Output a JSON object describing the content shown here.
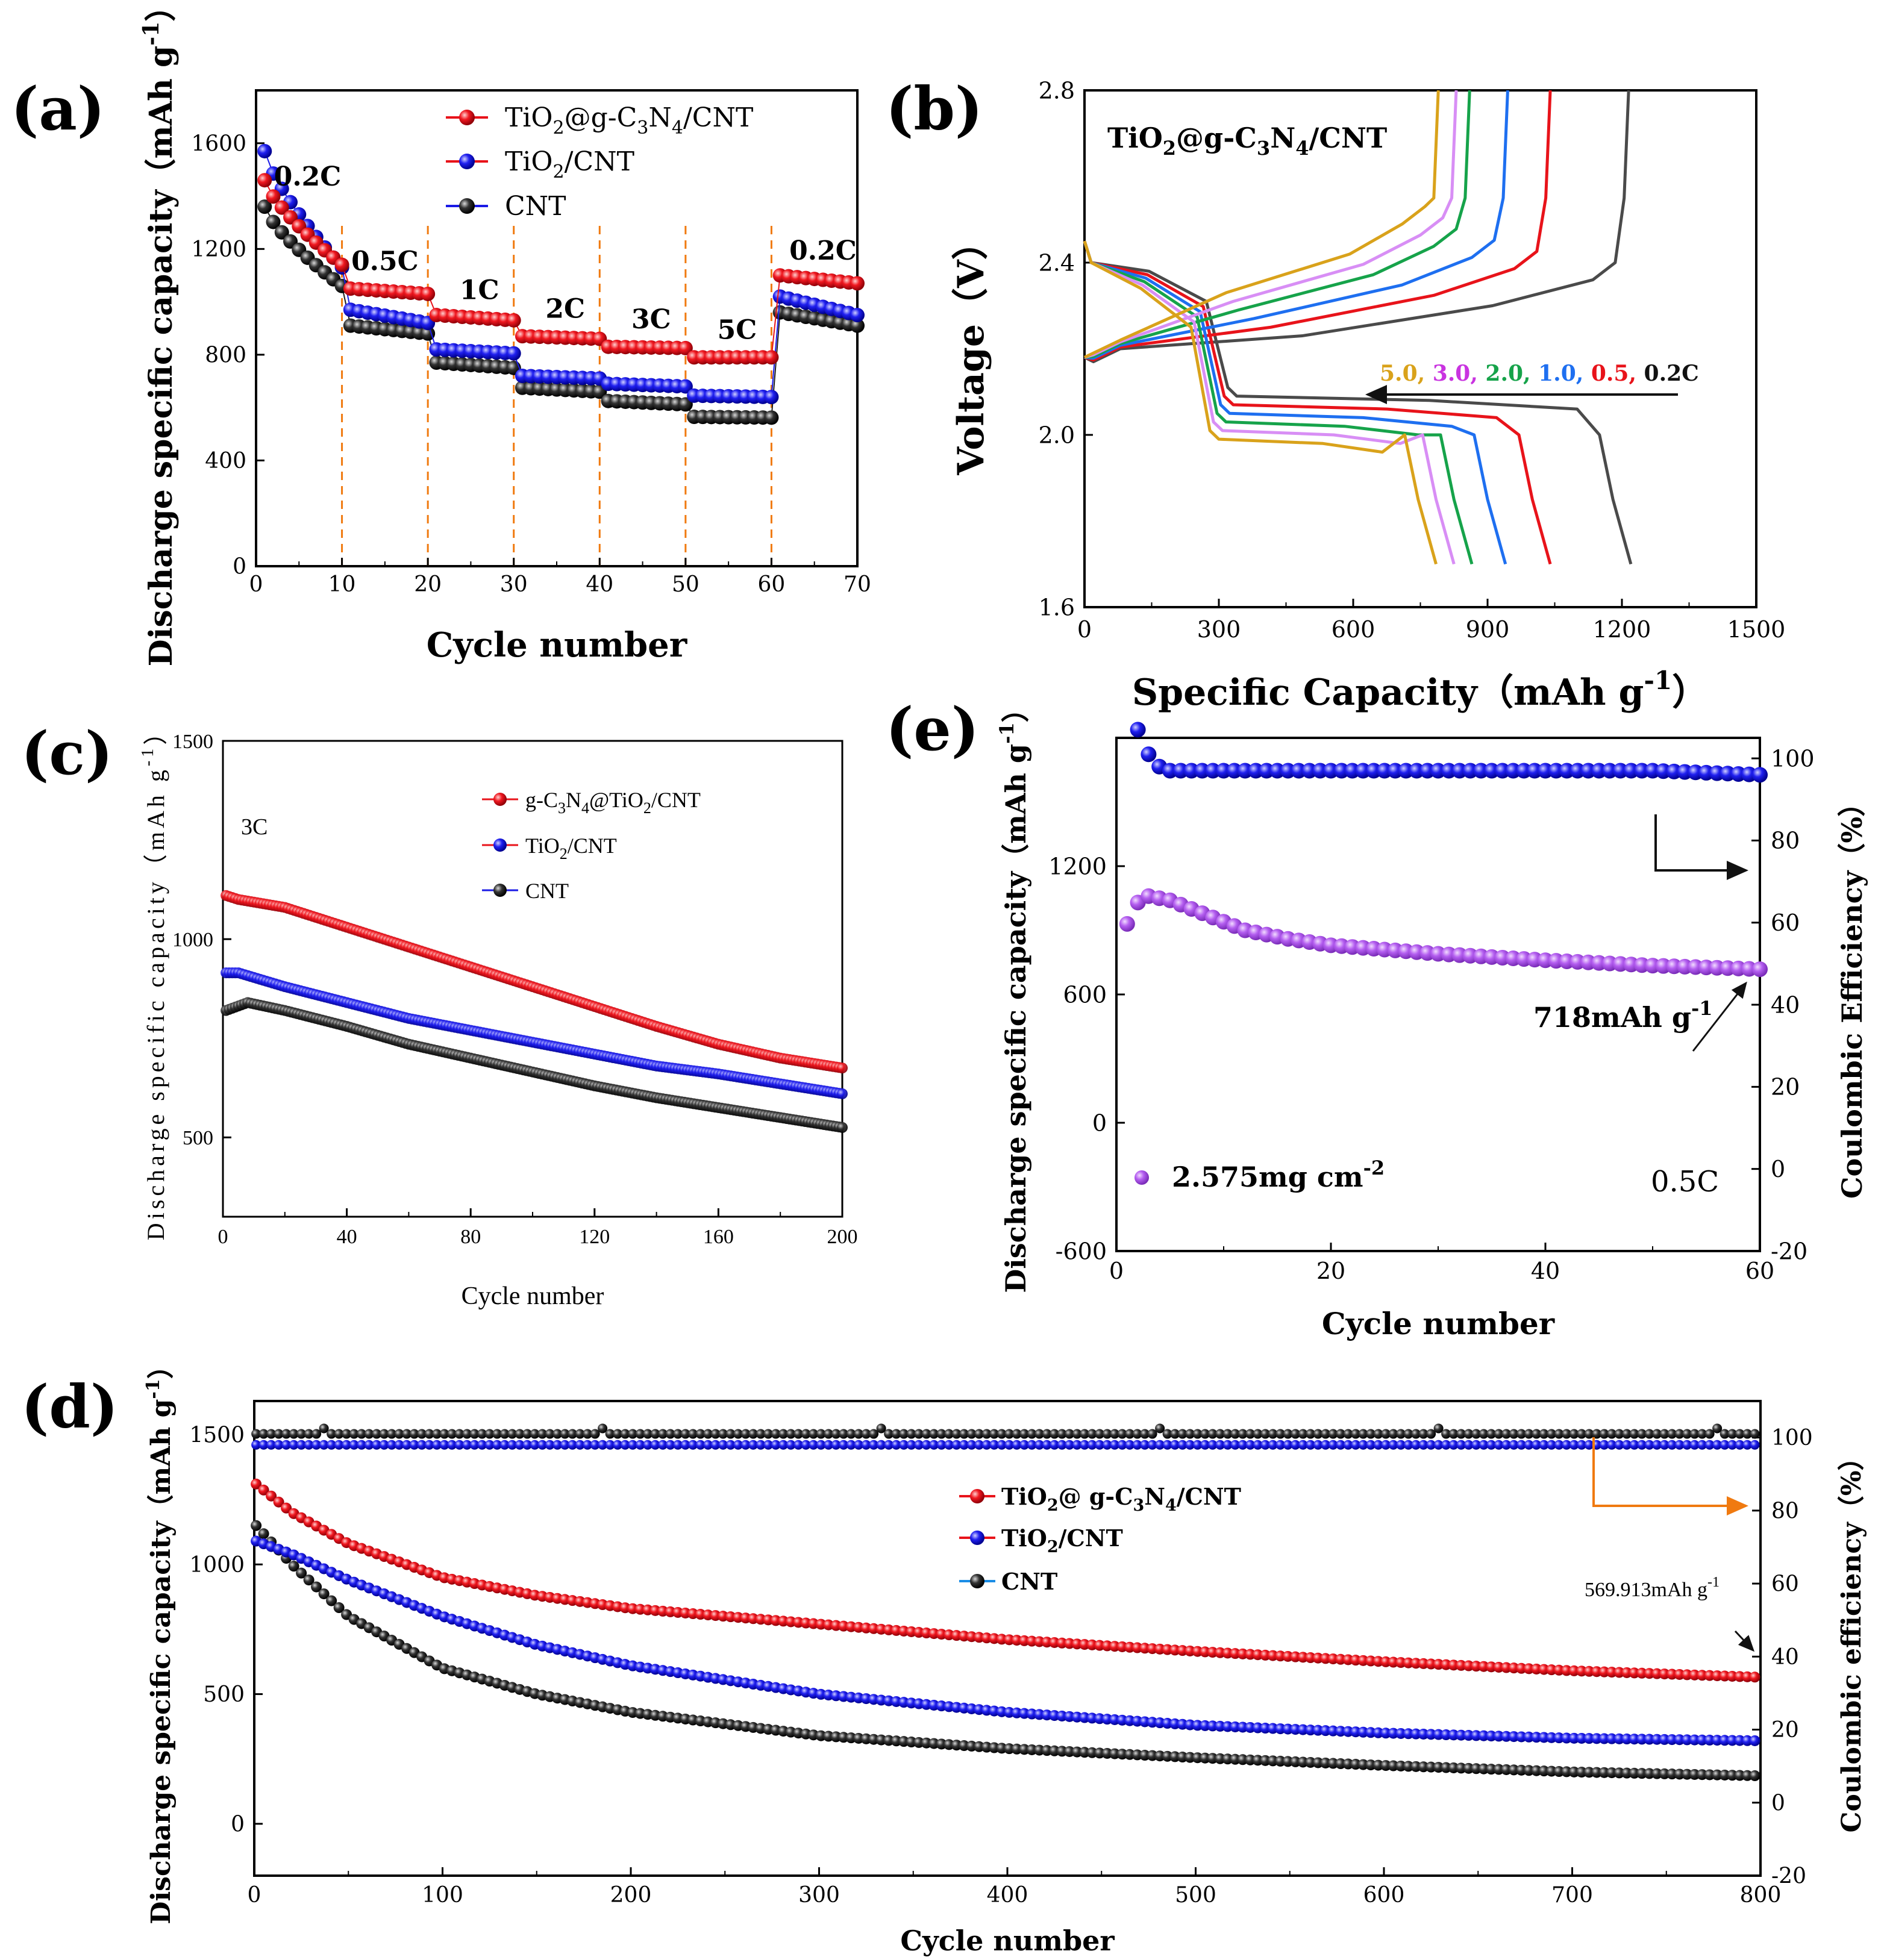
{
  "colors": {
    "red": "#e8131a",
    "blue": "#1a1ae6",
    "black": "#1c1c1c",
    "purple": "#b45ef0",
    "orange": "#f07a10",
    "gold": "#d9a21b",
    "magenta": "#c933e0",
    "violet": "#d88ef5",
    "green": "#16a34a",
    "sky": "#1e6ff0",
    "gray": "#4a4a4a"
  },
  "chart_data": [
    {
      "panel": "(a)",
      "type": "scatter",
      "xlabel": "Cycle number",
      "ylabel": "Discharge specific capacity（mAh g",
      "ylabel_sup": "-1",
      "ylabel_end": "）",
      "xlim": [
        0,
        70
      ],
      "ylim": [
        0,
        1800
      ],
      "xticks": [
        0,
        10,
        20,
        30,
        40,
        50,
        60,
        70
      ],
      "yticks": [
        0,
        400,
        800,
        1200,
        1600
      ],
      "dividers": [
        10,
        20,
        30,
        40,
        50,
        60
      ],
      "rate_labels": [
        {
          "text": "0.2C",
          "x": 6,
          "y": 1440
        },
        {
          "text": "0.5C",
          "x": 15,
          "y": 1120
        },
        {
          "text": "1C",
          "x": 26,
          "y": 1010
        },
        {
          "text": "2C",
          "x": 36,
          "y": 940
        },
        {
          "text": "3C",
          "x": 46,
          "y": 900
        },
        {
          "text": "5C",
          "x": 56,
          "y": 860
        },
        {
          "text": "0.2C",
          "x": 66,
          "y": 1160
        }
      ],
      "legend": [
        {
          "main": "TiO",
          "s1": "2",
          "mid": "@g-C",
          "s2": "3",
          "mid2": "N",
          "s3": "4",
          "tail": "/CNT"
        },
        {
          "main": "TiO",
          "s1": "2",
          "tail": "/CNT"
        },
        {
          "main": "CNT"
        }
      ],
      "series": [
        {
          "name": "TiO2@g-C3N4/CNT",
          "color": "red",
          "segments": [
            {
              "x": [
                1,
                10
              ],
              "start": 1460,
              "end": 1140
            },
            {
              "x": [
                11,
                20
              ],
              "start": 1050,
              "end": 1030
            },
            {
              "x": [
                21,
                30
              ],
              "start": 950,
              "end": 930
            },
            {
              "x": [
                31,
                40
              ],
              "start": 870,
              "end": 860
            },
            {
              "x": [
                41,
                50
              ],
              "start": 830,
              "end": 825
            },
            {
              "x": [
                51,
                60
              ],
              "start": 790,
              "end": 790
            },
            {
              "x": [
                61,
                70
              ],
              "start": 1100,
              "end": 1070
            }
          ]
        },
        {
          "name": "TiO2/CNT",
          "color": "blue",
          "segments": [
            {
              "x": [
                1,
                10
              ],
              "start": 1570,
              "end": 1130
            },
            {
              "x": [
                11,
                20
              ],
              "start": 970,
              "end": 920
            },
            {
              "x": [
                21,
                30
              ],
              "start": 820,
              "end": 805
            },
            {
              "x": [
                31,
                40
              ],
              "start": 720,
              "end": 710
            },
            {
              "x": [
                41,
                50
              ],
              "start": 690,
              "end": 680
            },
            {
              "x": [
                51,
                60
              ],
              "start": 645,
              "end": 640
            },
            {
              "x": [
                61,
                70
              ],
              "start": 1020,
              "end": 950
            }
          ]
        },
        {
          "name": "CNT",
          "color": "black",
          "segments": [
            {
              "x": [
                1,
                10
              ],
              "start": 1360,
              "end": 1060
            },
            {
              "x": [
                11,
                20
              ],
              "start": 910,
              "end": 880
            },
            {
              "x": [
                21,
                30
              ],
              "start": 770,
              "end": 750
            },
            {
              "x": [
                31,
                40
              ],
              "start": 675,
              "end": 660
            },
            {
              "x": [
                41,
                50
              ],
              "start": 625,
              "end": 612
            },
            {
              "x": [
                51,
                60
              ],
              "start": 565,
              "end": 562
            },
            {
              "x": [
                61,
                70
              ],
              "start": 960,
              "end": 910
            }
          ]
        }
      ]
    },
    {
      "panel": "(b)",
      "type": "line",
      "title_main": "TiO",
      "title_s1": "2",
      "title_mid": "@g-C",
      "title_s2": "3",
      "title_mid2": "N",
      "title_s3": "4",
      "title_tail": "/CNT",
      "xlabel": "Specific Capacity（mAh g",
      "xlabel_sup": "-1",
      "xlabel_end": "）",
      "ylabel": "Voltage（V）",
      "xlim": [
        0,
        1500
      ],
      "ylim": [
        1.6,
        2.8
      ],
      "xticks": [
        0,
        300,
        600,
        900,
        1200,
        1500
      ],
      "yticks": [
        "1.6",
        "2.0",
        "2.4",
        "2.8"
      ],
      "rate_legend": [
        {
          "text": "5.0, ",
          "color": "gold"
        },
        {
          "text": "3.0, ",
          "color": "magenta"
        },
        {
          "text": "2.0, ",
          "color": "green"
        },
        {
          "text": "1.0, ",
          "color": "sky"
        },
        {
          "text": "0.5, ",
          "color": "red"
        },
        {
          "text": "0.2C",
          "color": "black"
        }
      ],
      "series": [
        {
          "name": "0.2C",
          "color": "gray",
          "discharge_capacity": 1220,
          "charge_capacity": 1215
        },
        {
          "name": "0.5C",
          "color": "red",
          "discharge_capacity": 1040,
          "charge_capacity": 1040
        },
        {
          "name": "1.0",
          "color": "sky",
          "discharge_capacity": 940,
          "charge_capacity": 945
        },
        {
          "name": "2.0",
          "color": "green",
          "discharge_capacity": 865,
          "charge_capacity": 860
        },
        {
          "name": "3.0",
          "color": "violet",
          "discharge_capacity": 825,
          "charge_capacity": 830
        },
        {
          "name": "5.0",
          "color": "gold",
          "discharge_capacity": 785,
          "charge_capacity": 790
        }
      ]
    },
    {
      "panel": "(c)",
      "type": "scatter",
      "xlabel": "Cycle number",
      "ylabel": "Discharge specific capacity（mAh g",
      "ylabel_sup": "-1",
      "ylabel_end": "）",
      "xlim": [
        0,
        200
      ],
      "ylim": [
        300,
        1500
      ],
      "xticks": [
        0,
        40,
        80,
        120,
        160,
        200
      ],
      "yticks": [
        500,
        1000,
        1500
      ],
      "annotation": "3C",
      "legend": [
        {
          "main": "g-C",
          "s1": "3",
          "mid": "N",
          "s2": "4",
          "mid2": "@TiO",
          "s3": "2",
          "tail": "/CNT"
        },
        {
          "main": "TiO",
          "s1": "2",
          "tail": "/CNT"
        },
        {
          "main": "CNT"
        }
      ],
      "series": [
        {
          "name": "g-C3N4@TiO2/CNT",
          "color": "red",
          "x": [
            1,
            5,
            20,
            40,
            60,
            80,
            100,
            120,
            140,
            160,
            180,
            200
          ],
          "y": [
            1110,
            1100,
            1080,
            1030,
            980,
            930,
            880,
            830,
            780,
            735,
            700,
            675
          ]
        },
        {
          "name": "TiO2/CNT",
          "color": "blue",
          "x": [
            1,
            5,
            20,
            40,
            60,
            80,
            100,
            120,
            140,
            160,
            180,
            200
          ],
          "y": [
            915,
            915,
            880,
            840,
            800,
            770,
            740,
            710,
            680,
            660,
            635,
            610
          ]
        },
        {
          "name": "CNT",
          "color": "black",
          "x": [
            1,
            8,
            20,
            40,
            60,
            80,
            100,
            120,
            140,
            160,
            180,
            200
          ],
          "y": [
            820,
            840,
            820,
            780,
            735,
            700,
            665,
            630,
            600,
            575,
            550,
            525
          ]
        }
      ]
    },
    {
      "panel": "(e)",
      "type": "scatter",
      "xlabel": "Cycle number",
      "ylabel": "Discharge specific capacity（mAh g",
      "ylabel_sup": "-1",
      "ylabel_end": "）",
      "y2label": "Coulombic Efficiency（%）",
      "xlim": [
        0,
        60
      ],
      "ylim": [
        -600,
        1800
      ],
      "y2lim": [
        -20,
        105
      ],
      "xticks": [
        0,
        20,
        40,
        60
      ],
      "yticks": [
        -600,
        0,
        600,
        1200
      ],
      "y2ticks": [
        -20,
        0,
        20,
        40,
        60,
        80,
        100
      ],
      "legend": "2.575mg cm",
      "legend_sup": "-2",
      "annotation": "0.5C",
      "callout": "718mAh g",
      "callout_sup": "-1",
      "series": [
        {
          "name": "capacity",
          "color": "purple",
          "x": [
            1,
            2,
            3,
            5,
            8,
            12,
            16,
            20,
            30,
            40,
            50,
            60
          ],
          "y": [
            930,
            1030,
            1060,
            1040,
            980,
            900,
            860,
            830,
            790,
            760,
            735,
            718
          ]
        },
        {
          "name": "coulombic_efficiency",
          "color": "blue",
          "axis": "y2",
          "x": [
            2,
            3,
            4,
            5,
            10,
            20,
            30,
            40,
            50,
            60
          ],
          "y": [
            107,
            101,
            98,
            97,
            97,
            97,
            97,
            97,
            97,
            96
          ]
        }
      ]
    },
    {
      "panel": "(d)",
      "type": "scatter",
      "xlabel": "Cycle number",
      "ylabel": "Discharge specific capacity（mAh g",
      "ylabel_sup": "-1",
      "ylabel_end": "）",
      "y2label": "Coulombic efficiency（%）",
      "xlim": [
        0,
        800
      ],
      "ylim": [
        -200,
        1630
      ],
      "y2lim": [
        -20,
        110
      ],
      "xticks": [
        0,
        100,
        200,
        300,
        400,
        500,
        600,
        700,
        800
      ],
      "yticks": [
        0,
        500,
        1000,
        1500
      ],
      "y2ticks": [
        -20,
        0,
        20,
        40,
        60,
        80,
        100
      ],
      "callout": "569.913mAh g",
      "callout_sup": "-1",
      "legend": [
        {
          "main": "TiO",
          "s1": "2",
          "mid": "@ g-C",
          "s2": "3",
          "mid2": "N",
          "s3": "4",
          "tail": "/CNT"
        },
        {
          "main": "TiO",
          "s1": "2",
          "tail": "/CNT"
        },
        {
          "main": "CNT"
        }
      ],
      "series": [
        {
          "name": "TiO2@g-C3N4/CNT",
          "color": "red",
          "x": [
            1,
            20,
            50,
            100,
            150,
            200,
            300,
            400,
            500,
            600,
            700,
            800
          ],
          "y": [
            1310,
            1200,
            1080,
            950,
            880,
            830,
            770,
            710,
            665,
            625,
            590,
            565
          ]
        },
        {
          "name": "TiO2/CNT",
          "color": "blue",
          "x": [
            1,
            20,
            50,
            100,
            150,
            200,
            300,
            400,
            500,
            600,
            700,
            800
          ],
          "y": [
            1090,
            1040,
            940,
            800,
            690,
            610,
            500,
            430,
            380,
            350,
            330,
            320
          ]
        },
        {
          "name": "CNT",
          "color": "black",
          "x": [
            1,
            20,
            50,
            100,
            150,
            200,
            300,
            400,
            500,
            600,
            700,
            800
          ],
          "y": [
            1150,
            1000,
            800,
            600,
            500,
            430,
            340,
            290,
            255,
            225,
            200,
            185
          ]
        },
        {
          "name": "CE_black",
          "color": "black",
          "axis": "y2",
          "x": [
            1,
            800
          ],
          "y": [
            101,
            101
          ]
        },
        {
          "name": "CE_blue",
          "color": "blue",
          "axis": "y2",
          "x": [
            1,
            800
          ],
          "y": [
            98,
            98
          ]
        }
      ]
    }
  ]
}
